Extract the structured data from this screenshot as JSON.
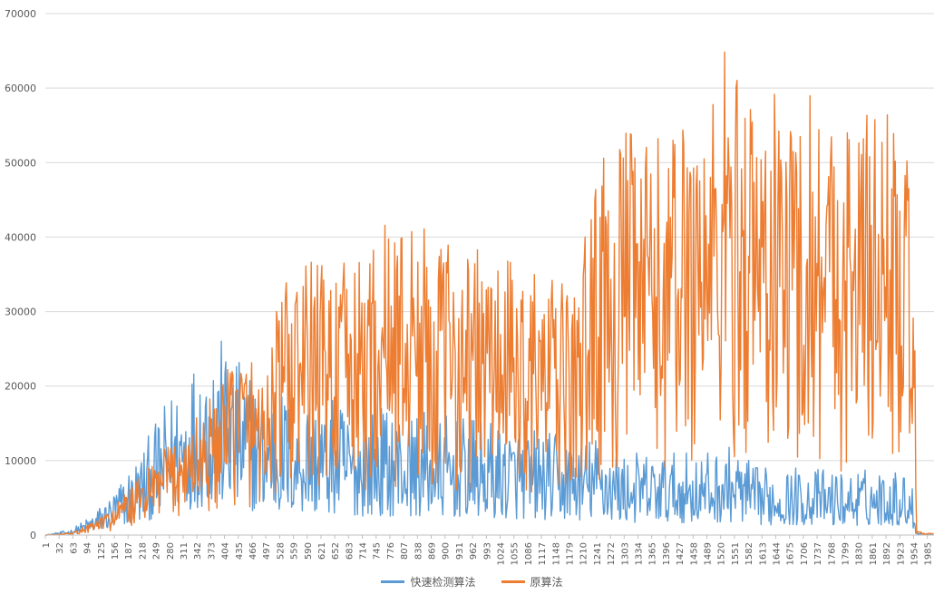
{
  "chart_data": {
    "type": "line",
    "title": "",
    "xlabel": "",
    "ylabel": "",
    "ylim": [
      0,
      70000
    ],
    "y_ticks": [
      "0",
      "10000",
      "20000",
      "30000",
      "40000",
      "50000",
      "60000",
      "70000"
    ],
    "x_range": [
      1,
      2000
    ],
    "x_tick_labels": [
      "1",
      "32",
      "63",
      "94",
      "125",
      "156",
      "187",
      "218",
      "249",
      "280",
      "311",
      "342",
      "373",
      "404",
      "435",
      "466",
      "497",
      "528",
      "559",
      "590",
      "621",
      "652",
      "683",
      "714",
      "745",
      "776",
      "807",
      "838",
      "869",
      "900",
      "931",
      "962",
      "993",
      "1024",
      "1055",
      "1086",
      "1117",
      "1148",
      "1179",
      "1210",
      "1241",
      "1272",
      "1303",
      "1334",
      "1365",
      "1396",
      "1427",
      "1458",
      "1489",
      "1520",
      "1551",
      "1582",
      "1613",
      "1644",
      "1675",
      "1706",
      "1737",
      "1768",
      "1799",
      "1830",
      "1861",
      "1892",
      "1923",
      "1954",
      "1985"
    ],
    "grid": true,
    "legend_position": "bottom",
    "series": [
      {
        "name": "快速检测算法",
        "color": "#5B9BD5",
        "approx_envelope_x": [
          1,
          60,
          100,
          150,
          200,
          250,
          300,
          350,
          380,
          420,
          500,
          600,
          700,
          800,
          900,
          1000,
          1100,
          1200,
          1250,
          1300,
          1400,
          1500,
          1550,
          1600,
          1700,
          1800,
          1900,
          1950,
          1960,
          2000
        ],
        "approx_envelope_y": [
          0,
          800,
          2500,
          5500,
          10000,
          15000,
          21000,
          25000,
          27500,
          24000,
          20000,
          19000,
          17000,
          17000,
          16000,
          15000,
          14000,
          13000,
          13500,
          11000,
          11000,
          11000,
          12000,
          9000,
          9000,
          8500,
          9000,
          8000,
          500,
          0
        ]
      },
      {
        "name": "原算法",
        "color": "#ED7D31",
        "approx_envelope_x": [
          1,
          60,
          100,
          150,
          200,
          250,
          300,
          350,
          400,
          430,
          500,
          530,
          560,
          620,
          700,
          770,
          810,
          900,
          1000,
          1100,
          1200,
          1230,
          1260,
          1300,
          1400,
          1450,
          1500,
          1530,
          1600,
          1700,
          1710,
          1800,
          1850,
          1880,
          1920,
          1955,
          1960,
          2000
        ],
        "approx_envelope_y": [
          0,
          300,
          1500,
          3500,
          7000,
          10000,
          14000,
          17000,
          20000,
          26000,
          23000,
          33000,
          35000,
          37500,
          36000,
          42000,
          43000,
          39000,
          38000,
          35000,
          33000,
          47000,
          51000,
          54000,
          53000,
          59000,
          60000,
          65000,
          60000,
          58000,
          62000,
          56000,
          58000,
          60000,
          54000,
          47000,
          500,
          200
        ]
      }
    ]
  }
}
